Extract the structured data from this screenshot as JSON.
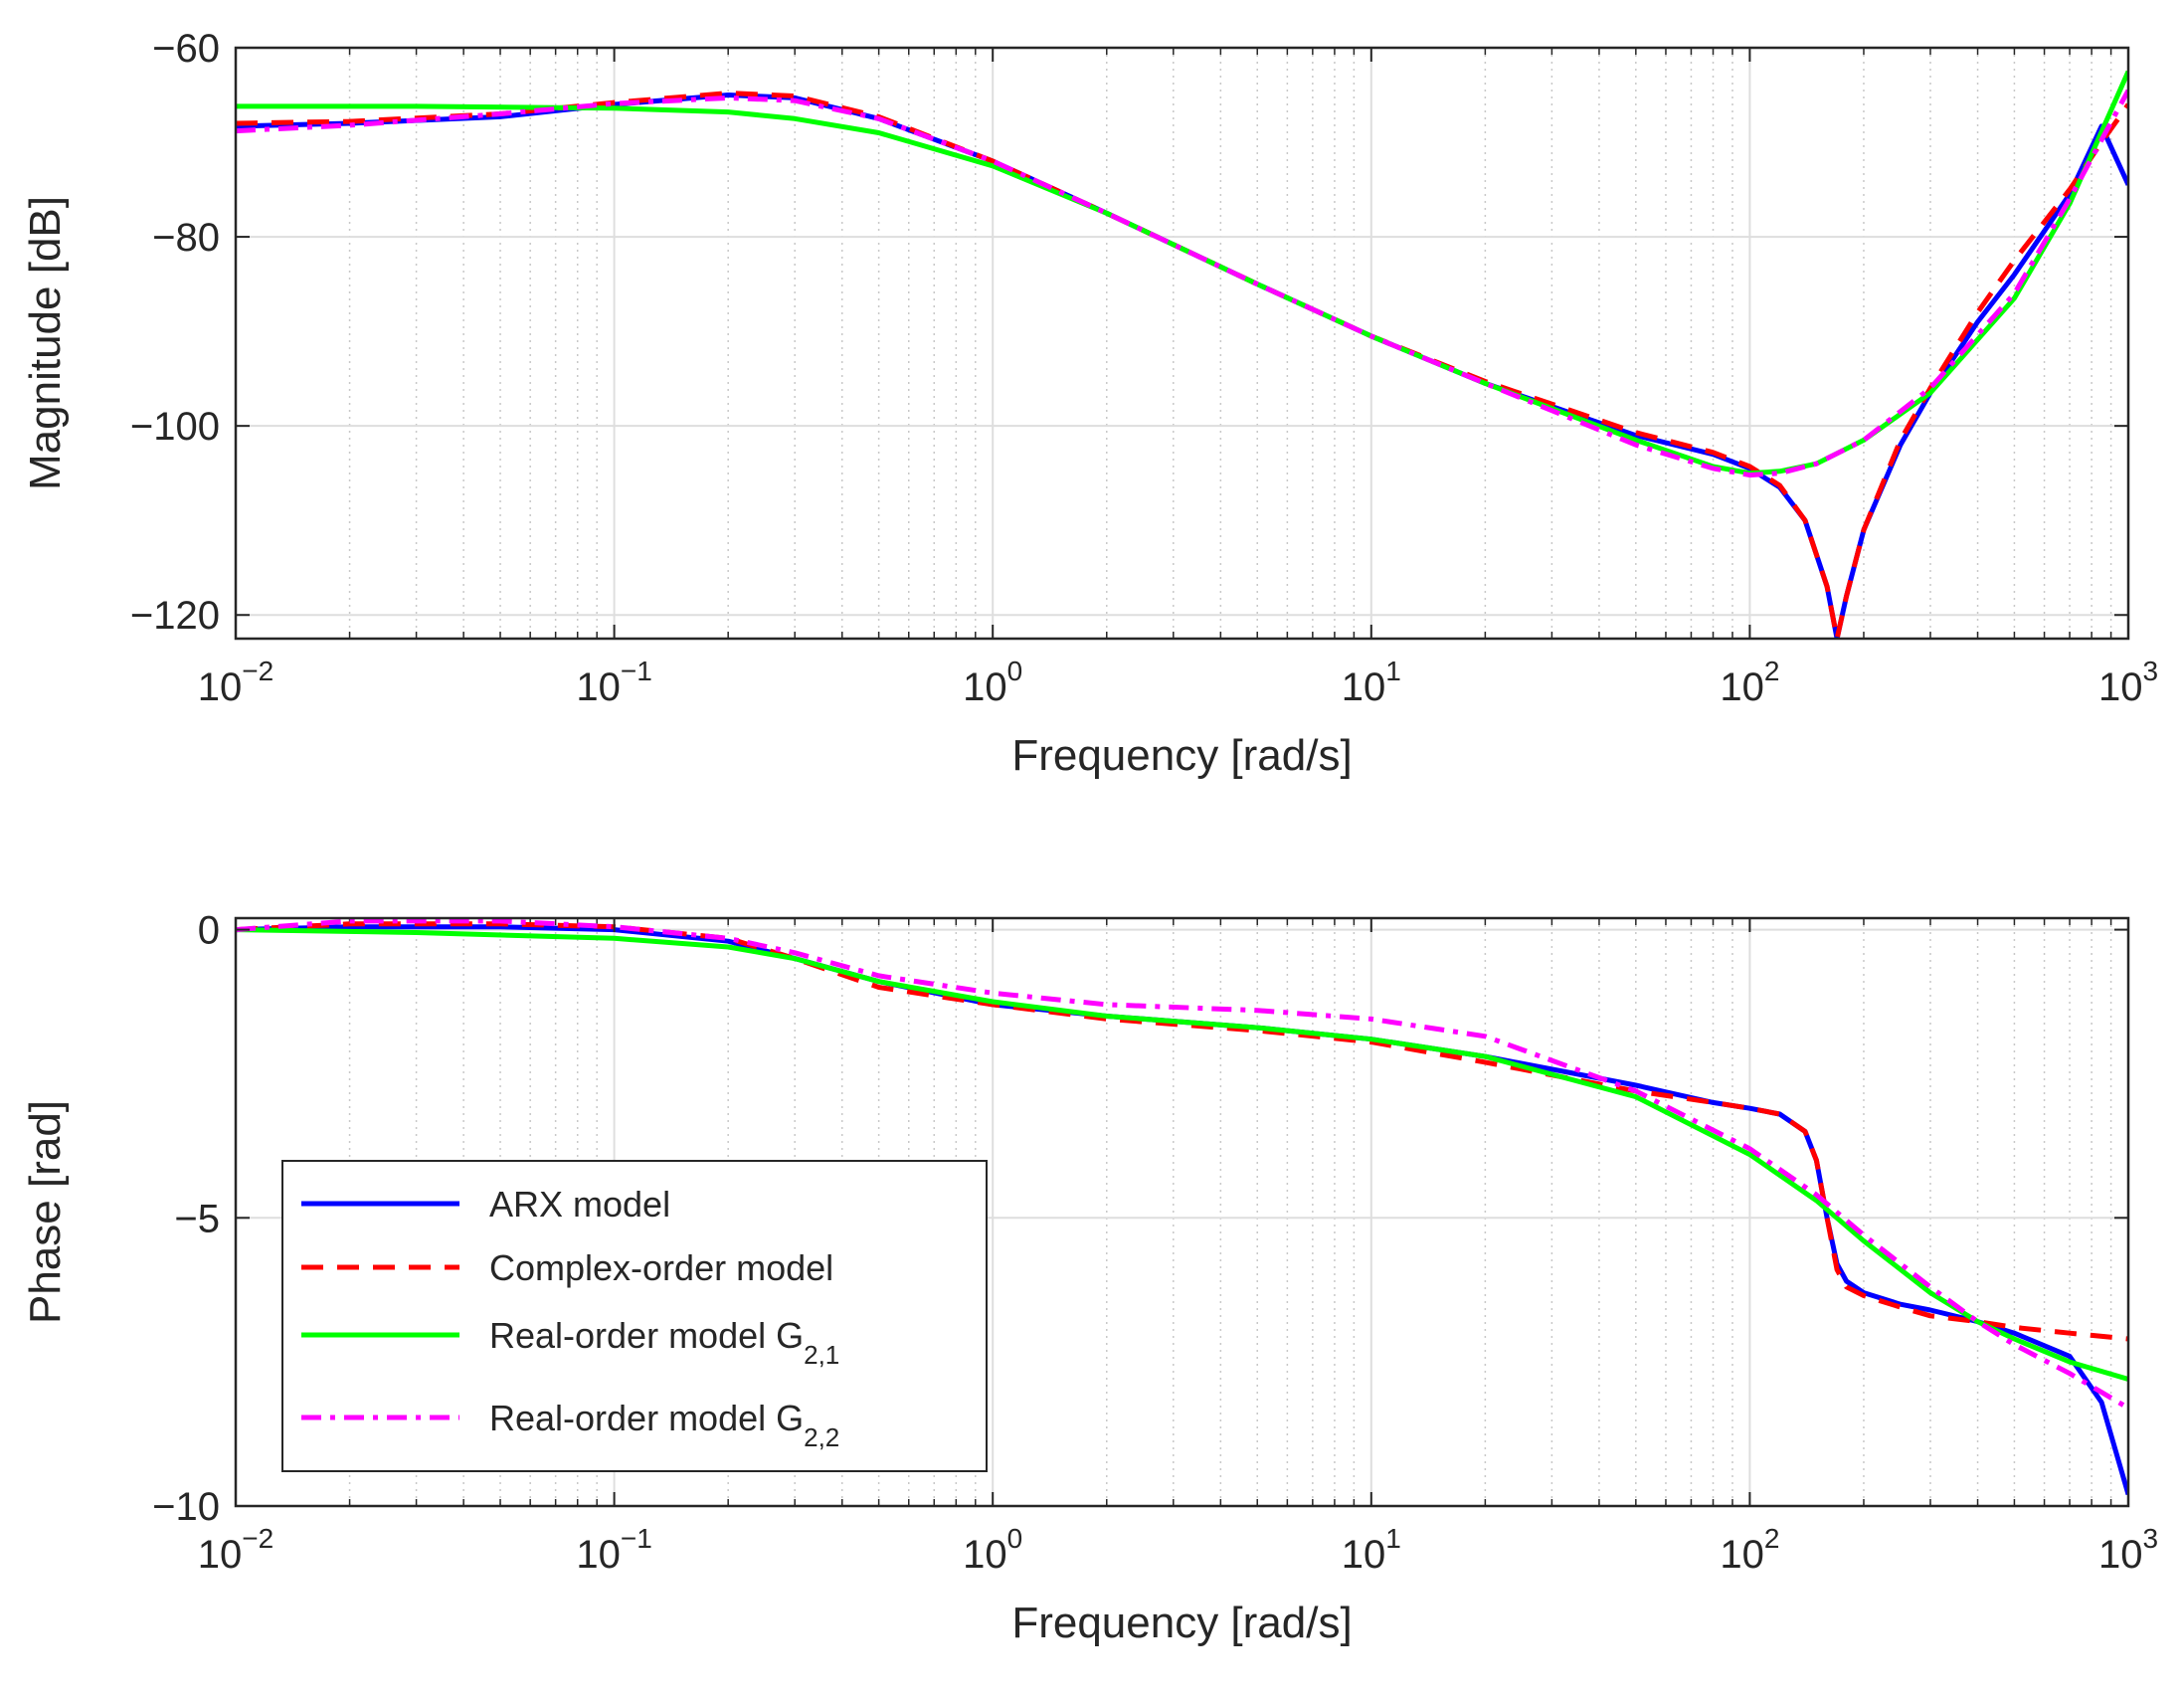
{
  "chart_data": [
    {
      "type": "line",
      "name": "magnitude",
      "xscale": "log",
      "xlabel": "Frequency [rad/s]",
      "ylabel": "Magnitude [dB]",
      "xlim": [
        0.01,
        1000
      ],
      "ylim": [
        -122.5,
        -60
      ],
      "xticks": [
        0.01,
        0.1,
        1,
        10,
        100,
        1000
      ],
      "xtick_labels": [
        {
          "base": "10",
          "exp": "−2"
        },
        {
          "base": "10",
          "exp": "−1"
        },
        {
          "base": "10",
          "exp": "0"
        },
        {
          "base": "10",
          "exp": "1"
        },
        {
          "base": "10",
          "exp": "2"
        },
        {
          "base": "10",
          "exp": "3"
        }
      ],
      "yticks": [
        -120,
        -100,
        -80,
        -60
      ],
      "ytick_labels": [
        "−120",
        "−100",
        "−80",
        "−60"
      ],
      "grid": true,
      "series": [
        {
          "name": "ARX model",
          "color": "#0000ff",
          "style": "solid",
          "x": [
            0.01,
            0.02,
            0.05,
            0.1,
            0.2,
            0.3,
            0.5,
            1,
            2,
            5,
            10,
            20,
            50,
            80,
            100,
            120,
            140,
            160,
            170,
            180,
            200,
            250,
            300,
            400,
            500,
            700,
            850,
            1000
          ],
          "y": [
            -68.3,
            -68.0,
            -67.3,
            -66.0,
            -65.0,
            -65.3,
            -67.5,
            -72.0,
            -77.5,
            -85.0,
            -90.5,
            -95.5,
            -101.0,
            -103.0,
            -104.5,
            -106.5,
            -110.0,
            -117.0,
            -122.5,
            -118.0,
            -111.0,
            -102.0,
            -96.5,
            -89.0,
            -84.0,
            -75.5,
            -68.3,
            -74.5
          ]
        },
        {
          "name": "Complex-order model",
          "color": "#ff0000",
          "style": "dashed",
          "x": [
            0.01,
            0.02,
            0.05,
            0.1,
            0.2,
            0.3,
            0.5,
            1,
            2,
            5,
            10,
            20,
            50,
            80,
            100,
            120,
            140,
            160,
            170,
            180,
            200,
            250,
            300,
            400,
            500,
            700,
            850,
            1000
          ],
          "y": [
            -68.0,
            -67.8,
            -67.0,
            -65.8,
            -64.8,
            -65.1,
            -67.3,
            -72.0,
            -77.5,
            -85.0,
            -90.5,
            -95.3,
            -100.7,
            -102.8,
            -104.3,
            -106.3,
            -110.0,
            -117.0,
            -122.5,
            -118.0,
            -111.0,
            -101.5,
            -96.0,
            -88.0,
            -82.5,
            -75.0,
            -70.0,
            -66.0
          ]
        },
        {
          "name": "Real-order model G_{2,1}",
          "color": "#00ff00",
          "style": "solid",
          "x": [
            0.01,
            0.03,
            0.1,
            0.2,
            0.3,
            0.5,
            1,
            2,
            5,
            10,
            20,
            50,
            80,
            100,
            120,
            150,
            200,
            300,
            500,
            700,
            1000
          ],
          "y": [
            -66.2,
            -66.2,
            -66.4,
            -66.8,
            -67.5,
            -69.0,
            -72.5,
            -77.5,
            -85.0,
            -90.5,
            -95.5,
            -101.5,
            -104.3,
            -105.0,
            -104.8,
            -104.0,
            -101.5,
            -96.5,
            -86.5,
            -76.5,
            -62.5
          ]
        },
        {
          "name": "Real-order model G_{2,2}",
          "color": "#ff00ff",
          "style": "dashdot",
          "x": [
            0.01,
            0.02,
            0.05,
            0.1,
            0.2,
            0.3,
            0.5,
            1,
            2,
            5,
            10,
            20,
            50,
            80,
            100,
            120,
            150,
            200,
            300,
            500,
            700,
            1000
          ],
          "y": [
            -68.8,
            -68.2,
            -67.0,
            -65.9,
            -65.3,
            -65.6,
            -67.5,
            -72.0,
            -77.5,
            -85.0,
            -90.5,
            -95.5,
            -102.0,
            -104.5,
            -105.2,
            -105.0,
            -104.0,
            -101.5,
            -96.0,
            -86.0,
            -76.0,
            -64.5
          ]
        }
      ]
    },
    {
      "type": "line",
      "name": "phase",
      "xscale": "log",
      "xlabel": "Frequency [rad/s]",
      "ylabel": "Phase [rad]",
      "xlim": [
        0.01,
        1000
      ],
      "ylim": [
        -10,
        0.2
      ],
      "xticks": [
        0.01,
        0.1,
        1,
        10,
        100,
        1000
      ],
      "xtick_labels": [
        {
          "base": "10",
          "exp": "−2"
        },
        {
          "base": "10",
          "exp": "−1"
        },
        {
          "base": "10",
          "exp": "0"
        },
        {
          "base": "10",
          "exp": "1"
        },
        {
          "base": "10",
          "exp": "2"
        },
        {
          "base": "10",
          "exp": "3"
        }
      ],
      "yticks": [
        -10,
        -5,
        0
      ],
      "ytick_labels": [
        "−10",
        "−5",
        "0"
      ],
      "grid": true,
      "legend": "bottom-left",
      "series": [
        {
          "name": "ARX model",
          "color": "#0000ff",
          "style": "solid",
          "x": [
            0.01,
            0.02,
            0.05,
            0.1,
            0.2,
            0.3,
            0.5,
            1,
            2,
            5,
            10,
            20,
            50,
            80,
            100,
            120,
            140,
            150,
            160,
            170,
            180,
            200,
            250,
            300,
            400,
            500,
            700,
            850,
            1000
          ],
          "y": [
            0.0,
            0.05,
            0.05,
            0.0,
            -0.2,
            -0.5,
            -0.9,
            -1.3,
            -1.5,
            -1.7,
            -1.9,
            -2.2,
            -2.7,
            -3.0,
            -3.1,
            -3.2,
            -3.5,
            -4.0,
            -5.0,
            -5.8,
            -6.1,
            -6.3,
            -6.5,
            -6.6,
            -6.8,
            -7.0,
            -7.4,
            -8.2,
            -9.8
          ]
        },
        {
          "name": "Complex-order model",
          "color": "#ff0000",
          "style": "dashed",
          "x": [
            0.01,
            0.02,
            0.05,
            0.1,
            0.2,
            0.3,
            0.5,
            1,
            2,
            5,
            10,
            20,
            50,
            80,
            100,
            120,
            140,
            150,
            160,
            170,
            180,
            200,
            250,
            300,
            400,
            500,
            700,
            1000
          ],
          "y": [
            0.0,
            0.1,
            0.1,
            0.05,
            -0.15,
            -0.5,
            -1.0,
            -1.3,
            -1.55,
            -1.75,
            -1.95,
            -2.3,
            -2.8,
            -3.0,
            -3.1,
            -3.2,
            -3.5,
            -4.0,
            -5.0,
            -5.9,
            -6.2,
            -6.35,
            -6.55,
            -6.7,
            -6.8,
            -6.9,
            -7.0,
            -7.1
          ]
        },
        {
          "name": "Real-order model G_{2,1}",
          "color": "#00ff00",
          "style": "solid",
          "x": [
            0.01,
            0.03,
            0.1,
            0.2,
            0.3,
            0.5,
            1,
            2,
            5,
            10,
            20,
            50,
            100,
            150,
            200,
            300,
            400,
            500,
            700,
            1000
          ],
          "y": [
            0.0,
            -0.05,
            -0.15,
            -0.3,
            -0.5,
            -0.9,
            -1.25,
            -1.5,
            -1.7,
            -1.9,
            -2.2,
            -2.9,
            -3.9,
            -4.7,
            -5.4,
            -6.3,
            -6.8,
            -7.1,
            -7.5,
            -7.8
          ]
        },
        {
          "name": "Real-order model G_{2,2}",
          "color": "#ff00ff",
          "style": "dashdot",
          "x": [
            0.01,
            0.02,
            0.05,
            0.1,
            0.2,
            0.3,
            0.5,
            1,
            2,
            5,
            10,
            20,
            50,
            100,
            150,
            200,
            300,
            400,
            500,
            700,
            1000
          ],
          "y": [
            0.0,
            0.15,
            0.15,
            0.05,
            -0.15,
            -0.4,
            -0.8,
            -1.1,
            -1.3,
            -1.4,
            -1.55,
            -1.85,
            -2.8,
            -3.8,
            -4.6,
            -5.3,
            -6.2,
            -6.8,
            -7.2,
            -7.7,
            -8.3
          ]
        }
      ]
    }
  ]
}
